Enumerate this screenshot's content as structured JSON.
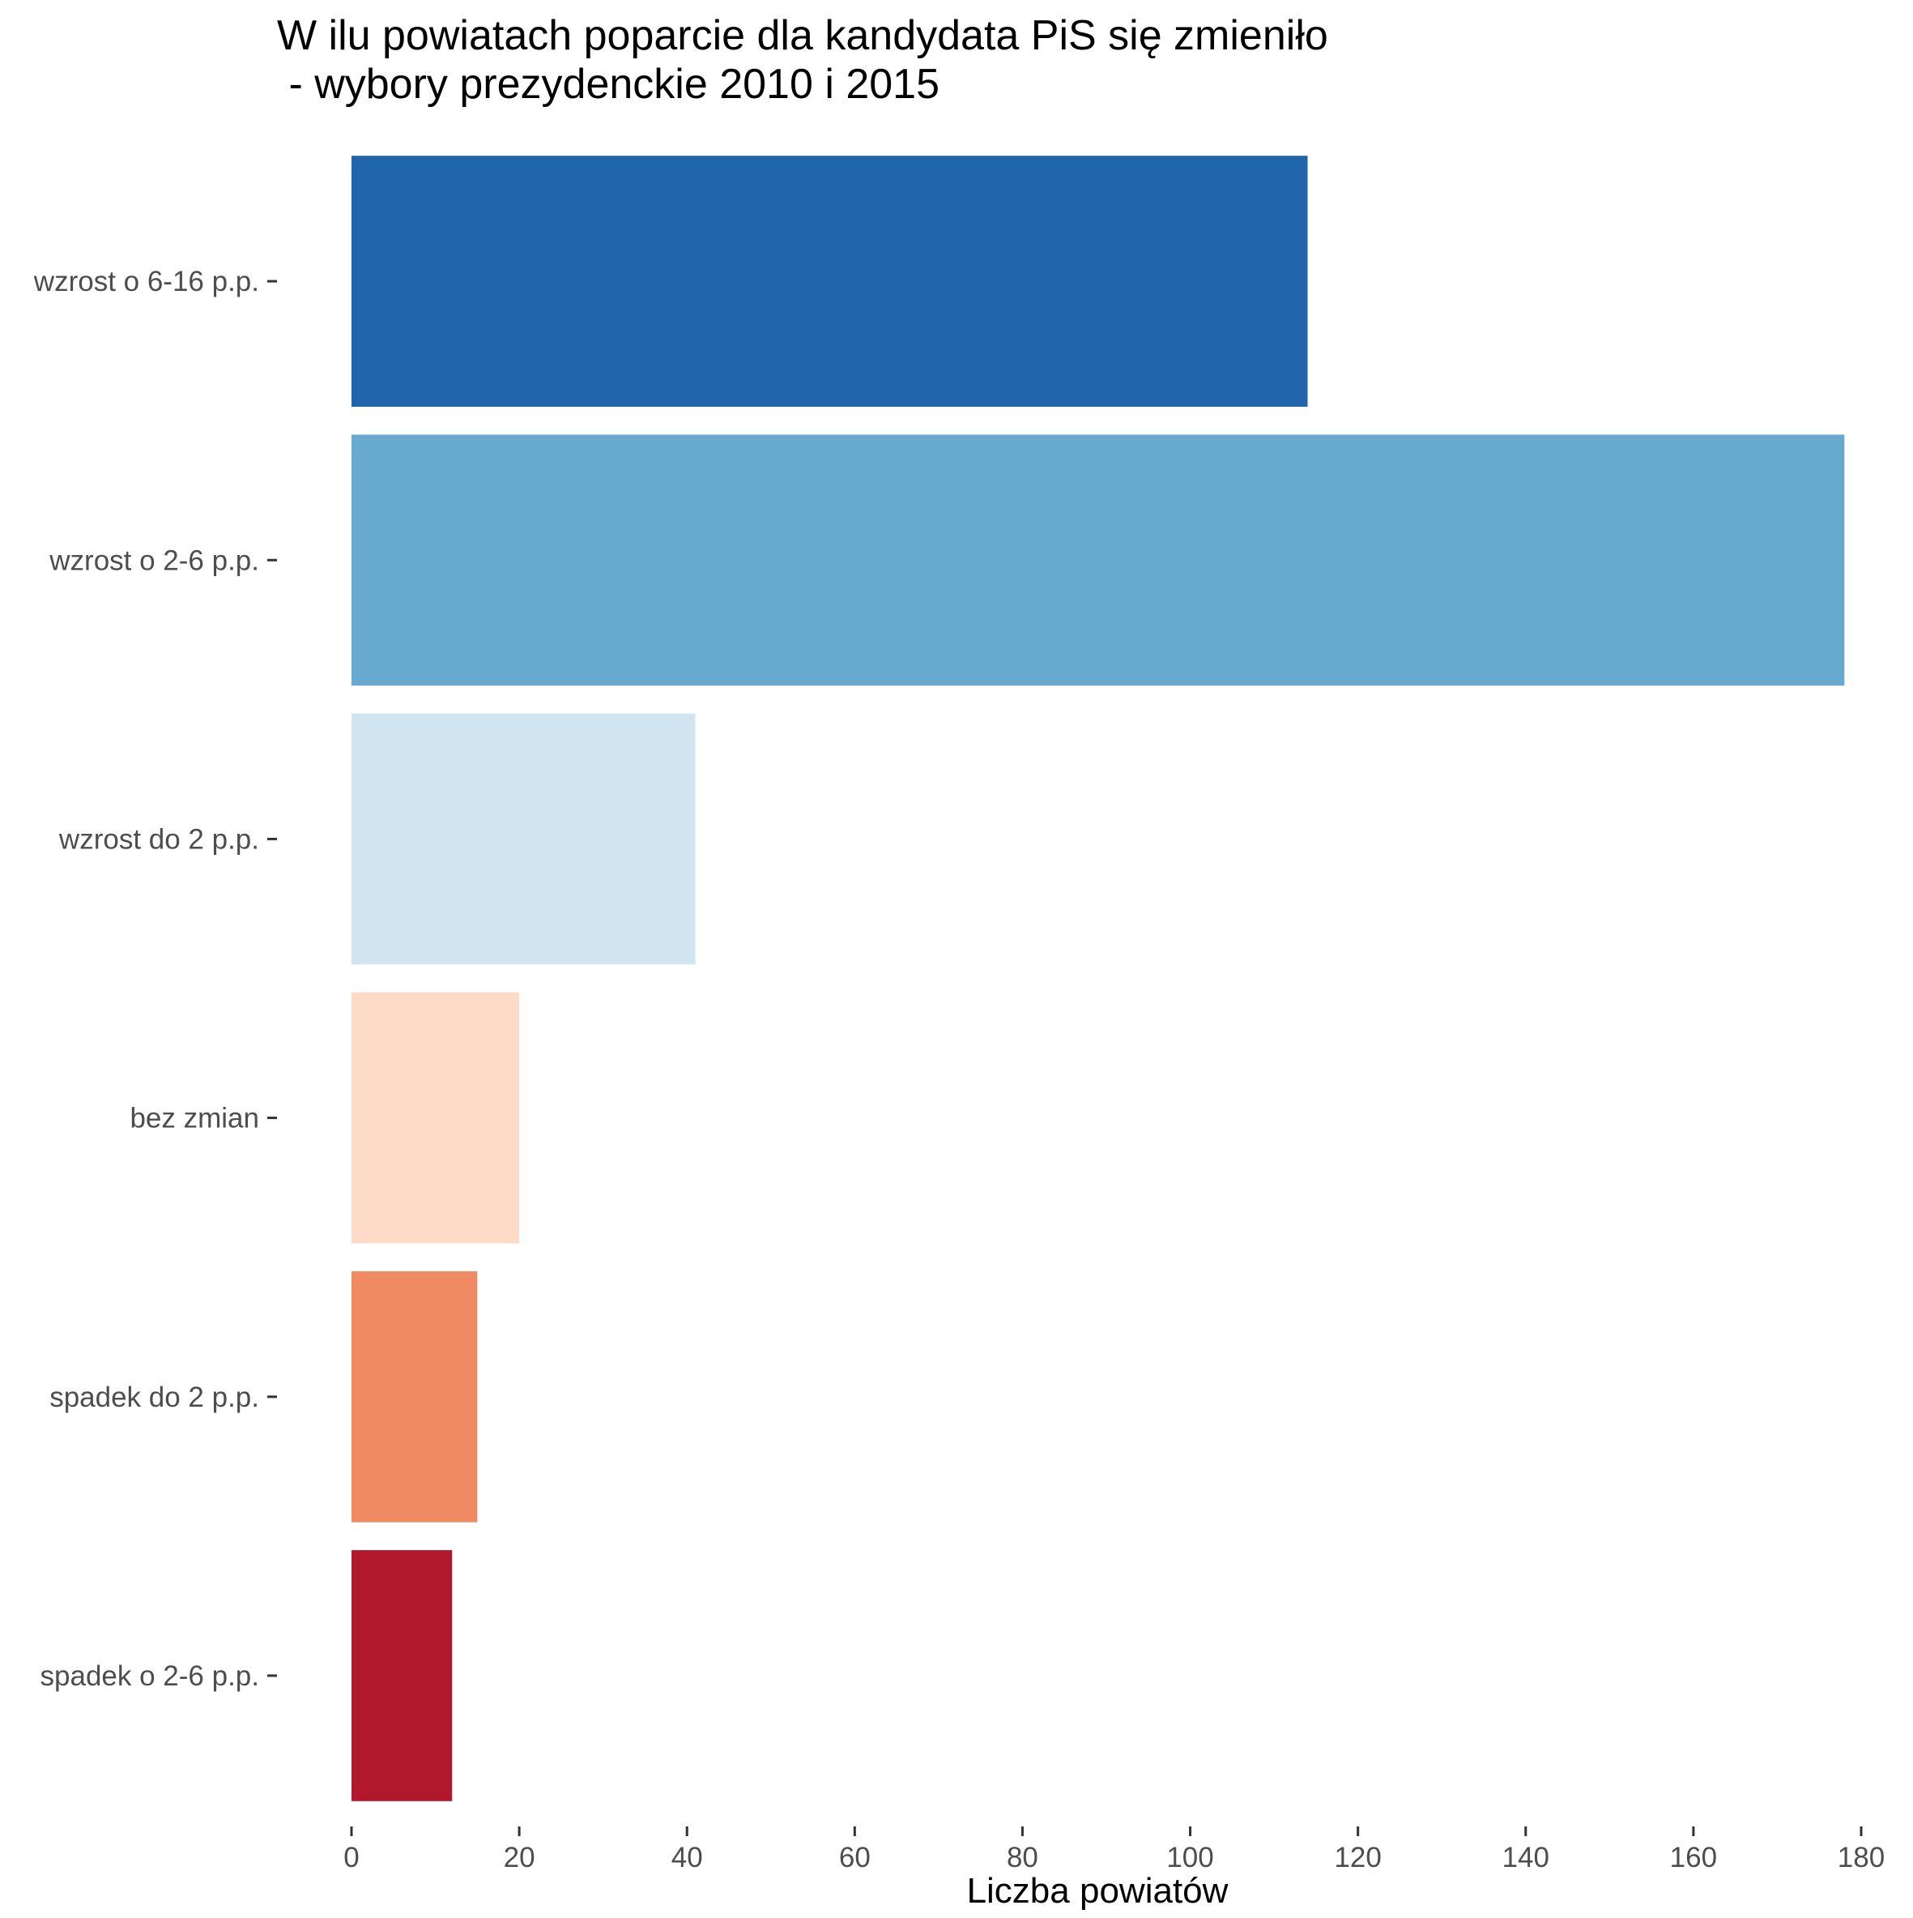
{
  "chart_data": {
    "type": "bar",
    "orientation": "horizontal",
    "title": "W ilu powiatach poparcie dla kandydata PiS się zmieniło\n - wybory prezydenckie 2010 i 2015",
    "xlabel": "Liczba powiatów",
    "ylabel": "",
    "categories": [
      "wzrost o 6-16 p.p.",
      "wzrost o 2-6 p.p.",
      "wzrost do 2 p.p.",
      "bez zmian",
      "spadek do 2 p.p.",
      "spadek o 2-6 p.p."
    ],
    "values": [
      114,
      178,
      41,
      20,
      15,
      12
    ],
    "colors": [
      "#2166ac",
      "#67a9cf",
      "#d1e5f0",
      "#fddbc7",
      "#ef8a62",
      "#b2182b"
    ],
    "xlim": [
      0,
      180
    ],
    "xticks": [
      0,
      20,
      40,
      60,
      80,
      100,
      120,
      140,
      160,
      180
    ],
    "grid": false,
    "legend": "none"
  }
}
